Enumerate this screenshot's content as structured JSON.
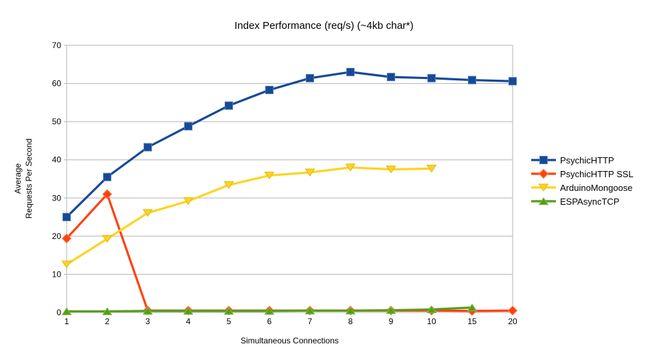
{
  "chart_data": {
    "type": "line",
    "title": "Index Performance (req/s) (~4kb char*)",
    "xlabel": "Simultaneous Connections",
    "ylabel_lines": [
      "Average",
      "Requests Per Second"
    ],
    "ylim": [
      0,
      70
    ],
    "yticks": [
      0,
      10,
      20,
      30,
      40,
      50,
      60,
      70
    ],
    "categories": [
      "1",
      "2",
      "3",
      "4",
      "5",
      "6",
      "7",
      "8",
      "9",
      "10",
      "15",
      "20"
    ],
    "grid": "horizontal",
    "legend_position": "right",
    "colors": {
      "background": "#ffffff",
      "grid": "#b3b3b3",
      "axis": "#b3b3b3",
      "text": "#000000"
    },
    "series": [
      {
        "name": "PsychicHTTP",
        "color": "#164a96",
        "edge": "#4a77b5",
        "marker": "square",
        "x": [
          "1",
          "2",
          "3",
          "4",
          "5",
          "6",
          "7",
          "8",
          "9",
          "10",
          "15",
          "20"
        ],
        "values": [
          25.0,
          35.5,
          43.3,
          48.8,
          54.2,
          58.3,
          61.4,
          63.0,
          61.7,
          61.4,
          60.9,
          60.6
        ]
      },
      {
        "name": "PsychicHTTP SSL",
        "color": "#ff420e",
        "edge": "#ff7a50",
        "marker": "diamond",
        "x": [
          "1",
          "2",
          "3",
          "4",
          "5",
          "6",
          "7",
          "8",
          "9",
          "10",
          "15",
          "20"
        ],
        "values": [
          19.4,
          31.0,
          0.5,
          0.5,
          0.5,
          0.5,
          0.5,
          0.5,
          0.5,
          0.5,
          0.4,
          0.5
        ]
      },
      {
        "name": "ArduinoMongoose",
        "color": "#ffd320",
        "edge": "#e0b71a",
        "marker": "triangle-down",
        "x": [
          "1",
          "2",
          "3",
          "4",
          "5",
          "6",
          "7",
          "8",
          "9",
          "10"
        ],
        "values": [
          12.6,
          19.3,
          26.1,
          29.2,
          33.4,
          35.9,
          36.7,
          38.0,
          37.5,
          37.7
        ]
      },
      {
        "name": "ESPAsyncTCP",
        "color": "#579d1c",
        "edge": "#7fbe45",
        "marker": "triangle-up",
        "x": [
          "1",
          "2",
          "3",
          "4",
          "5",
          "6",
          "7",
          "8",
          "9",
          "10",
          "15"
        ],
        "values": [
          0.3,
          0.3,
          0.4,
          0.4,
          0.4,
          0.4,
          0.5,
          0.5,
          0.6,
          0.8,
          1.3
        ]
      }
    ]
  }
}
